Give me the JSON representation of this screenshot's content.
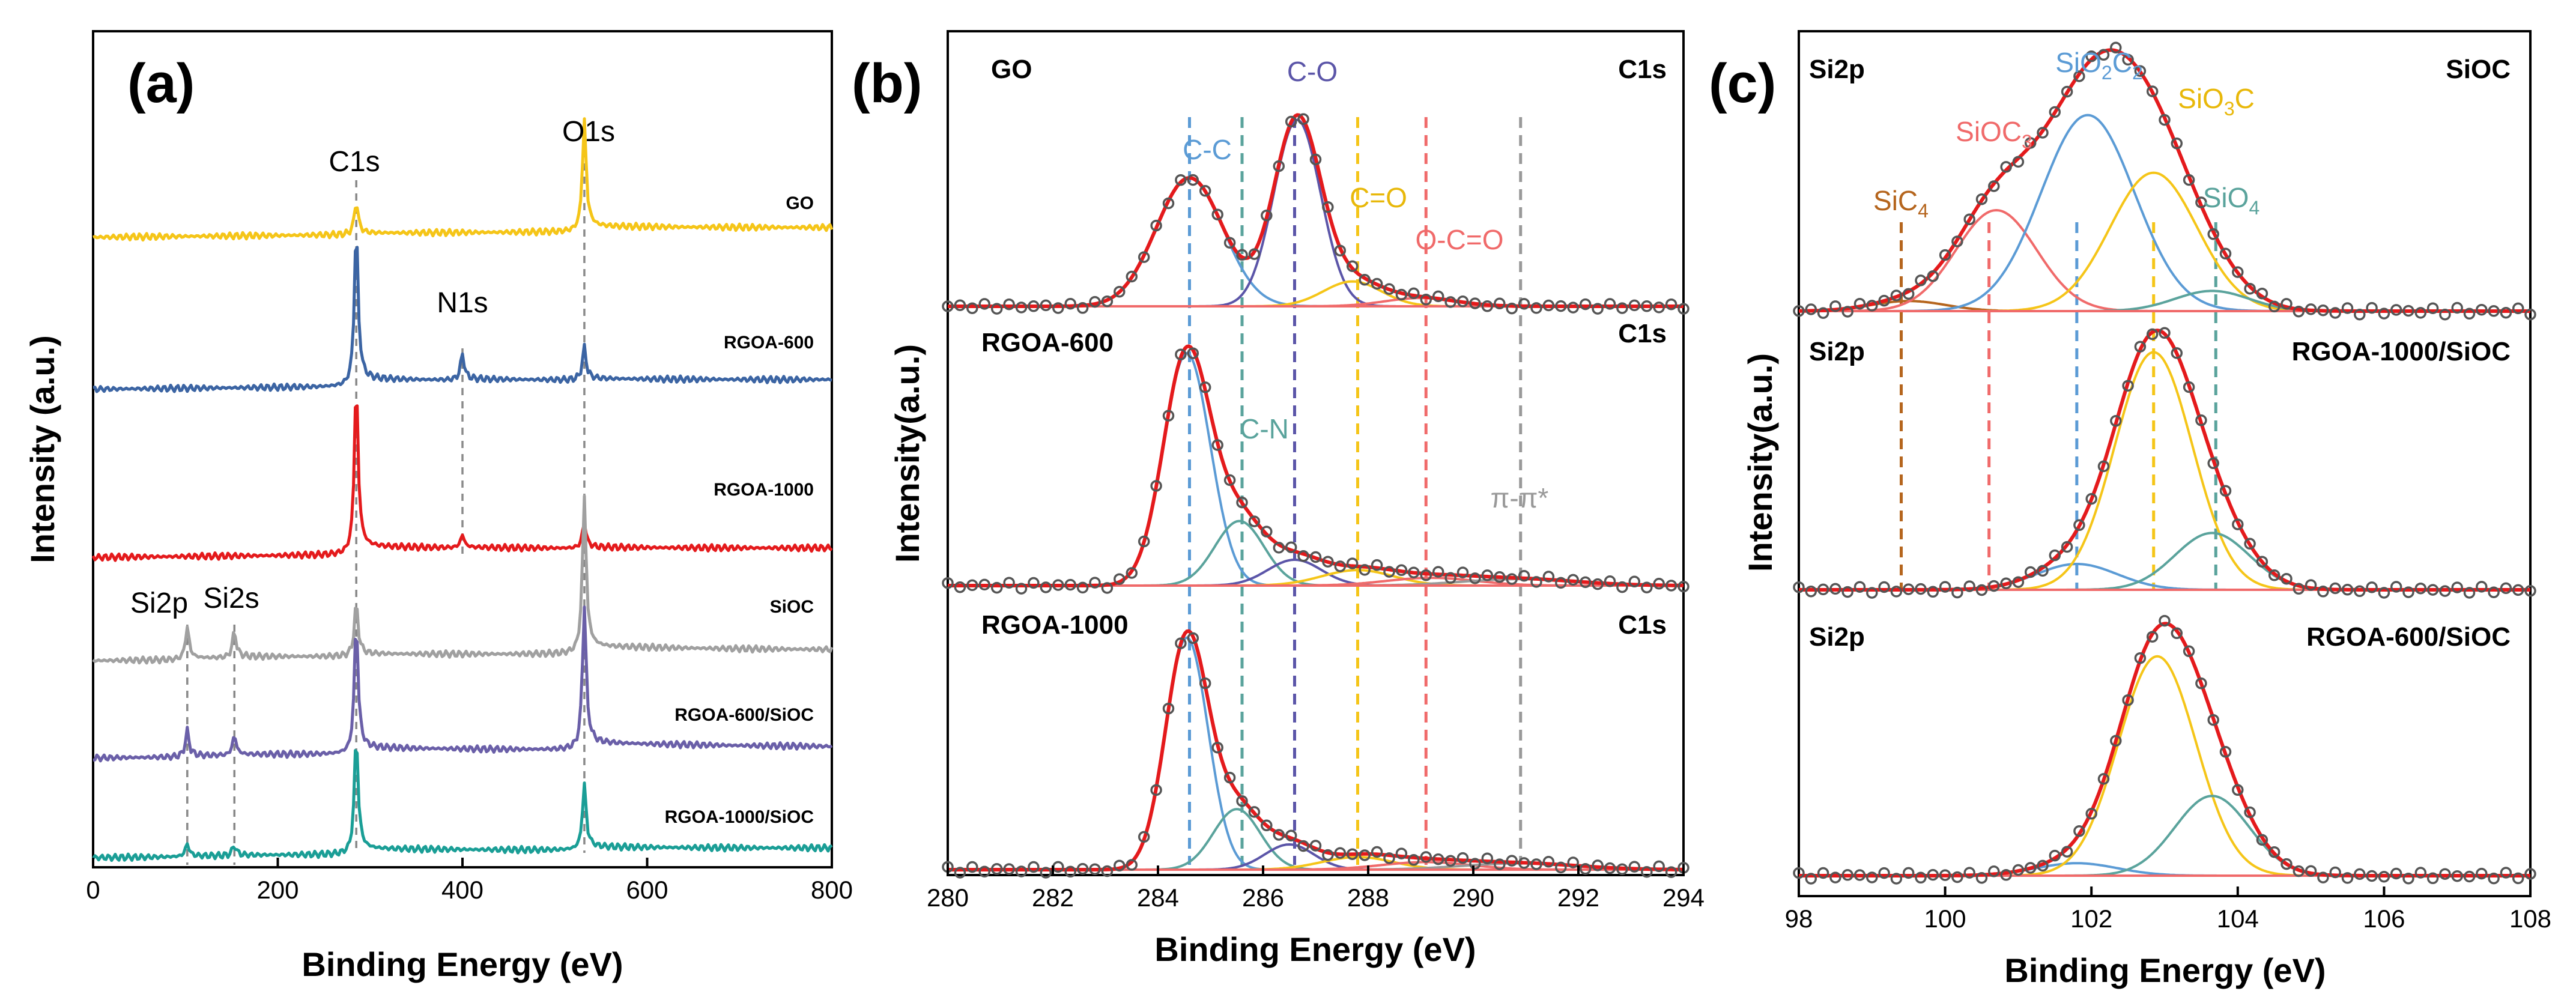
{
  "chart_data": [
    {
      "panel": "(a)",
      "type": "line",
      "xlabel": "Binding Energy (eV)",
      "ylabel": "Intensity (a.u.)",
      "xlim": [
        0,
        800
      ],
      "xticks": [
        0,
        200,
        400,
        600,
        800
      ],
      "peak_labels": [
        {
          "text": "C1s",
          "x": 285
        },
        {
          "text": "O1s",
          "x": 532
        },
        {
          "text": "N1s",
          "x": 400
        },
        {
          "text": "Si2p",
          "x": 102
        },
        {
          "text": "Si2s",
          "x": 153
        }
      ],
      "series": [
        {
          "name": "GO",
          "color": "#f5c518",
          "peaks": [
            [
              285,
              0.25
            ],
            [
              532,
              0.85
            ]
          ]
        },
        {
          "name": "RGOA-600",
          "color": "#3b64a3",
          "peaks": [
            [
              285,
              1.2
            ],
            [
              400,
              0.2
            ],
            [
              532,
              0.25
            ]
          ]
        },
        {
          "name": "RGOA-1000",
          "color": "#e41a1c",
          "peaks": [
            [
              285,
              1.3
            ],
            [
              400,
              0.1
            ],
            [
              532,
              0.2
            ]
          ]
        },
        {
          "name": "SiOC",
          "color": "#a0a0a0",
          "peaks": [
            [
              102,
              0.25
            ],
            [
              153,
              0.2
            ],
            [
              285,
              0.4
            ],
            [
              532,
              1.2
            ]
          ]
        },
        {
          "name": "RGOA-600/SiOC",
          "color": "#6a5fa8",
          "peaks": [
            [
              102,
              0.2
            ],
            [
              153,
              0.15
            ],
            [
              285,
              1.0
            ],
            [
              532,
              1.1
            ]
          ]
        },
        {
          "name": "RGOA-1000/SiOC",
          "color": "#1a9e96",
          "peaks": [
            [
              102,
              0.1
            ],
            [
              153,
              0.08
            ],
            [
              285,
              0.9
            ],
            [
              532,
              0.5
            ]
          ]
        }
      ]
    },
    {
      "panel": "(b)",
      "type": "line",
      "xlabel": "Binding Energy (eV)",
      "ylabel": "Intensity(a.u.)",
      "xlim": [
        280,
        294
      ],
      "xticks": [
        280,
        282,
        284,
        286,
        288,
        290,
        292,
        294
      ],
      "guides": [
        {
          "x": 284.6,
          "color": "#5b9bd5"
        },
        {
          "x": 285.6,
          "color": "#5aa39c"
        },
        {
          "x": 286.6,
          "color": "#5b55a8"
        },
        {
          "x": 287.8,
          "color": "#f5c518"
        },
        {
          "x": 289.1,
          "color": "#f06a6a"
        },
        {
          "x": 290.9,
          "color": "#999999"
        }
      ],
      "component_labels": [
        {
          "text": "C-C",
          "color": "#5b9bd5"
        },
        {
          "text": "C-O",
          "color": "#5b55a8"
        },
        {
          "text": "C=O",
          "color": "#e8b80a"
        },
        {
          "text": "O-C=O",
          "color": "#f06a6a"
        },
        {
          "text": "C-N",
          "color": "#5aa39c"
        },
        {
          "text": "π-π*",
          "color": "#999999"
        }
      ],
      "subplots": [
        {
          "name": "GO",
          "core_level": "C1s",
          "components": [
            {
              "label": "C-C",
              "center": 284.6,
              "fwhm": 1.5,
              "height": 0.62,
              "color": "#5b9bd5"
            },
            {
              "label": "C-O",
              "center": 286.65,
              "fwhm": 1.05,
              "height": 0.9,
              "color": "#5b55a8"
            },
            {
              "label": "C=O",
              "center": 287.7,
              "fwhm": 1.3,
              "height": 0.12,
              "color": "#f5c518"
            },
            {
              "label": "O-C=O",
              "center": 289.0,
              "fwhm": 1.6,
              "height": 0.04,
              "color": "#f06a6a"
            }
          ]
        },
        {
          "name": "RGOA-600",
          "core_level": "C1s",
          "components": [
            {
              "label": "C-C",
              "center": 284.55,
              "fwhm": 1.05,
              "height": 0.9,
              "color": "#5b9bd5"
            },
            {
              "label": "C-N",
              "center": 285.55,
              "fwhm": 1.1,
              "height": 0.25,
              "color": "#5aa39c"
            },
            {
              "label": "C-O",
              "center": 286.6,
              "fwhm": 1.2,
              "height": 0.1,
              "color": "#5b55a8"
            },
            {
              "label": "C=O",
              "center": 287.8,
              "fwhm": 1.6,
              "height": 0.06,
              "color": "#f5c518"
            },
            {
              "label": "O-C=O",
              "center": 289.2,
              "fwhm": 2.0,
              "height": 0.03,
              "color": "#f06a6a"
            },
            {
              "label": "π-π*",
              "center": 290.9,
              "fwhm": 2.6,
              "height": 0.025,
              "color": "#999999"
            }
          ]
        },
        {
          "name": "RGOA-1000",
          "core_level": "C1s",
          "components": [
            {
              "label": "C-C",
              "center": 284.55,
              "fwhm": 0.95,
              "height": 0.92,
              "color": "#5b9bd5"
            },
            {
              "label": "C-N",
              "center": 285.5,
              "fwhm": 1.05,
              "height": 0.24,
              "color": "#5aa39c"
            },
            {
              "label": "C-O",
              "center": 286.5,
              "fwhm": 1.1,
              "height": 0.1,
              "color": "#5b55a8"
            },
            {
              "label": "C=O",
              "center": 287.8,
              "fwhm": 1.6,
              "height": 0.05,
              "color": "#f5c518"
            },
            {
              "label": "O-C=O",
              "center": 289.1,
              "fwhm": 2.0,
              "height": 0.03,
              "color": "#f06a6a"
            },
            {
              "label": "π-π*",
              "center": 290.9,
              "fwhm": 2.6,
              "height": 0.025,
              "color": "#999999"
            }
          ]
        }
      ]
    },
    {
      "panel": "(c)",
      "type": "line",
      "xlabel": "Binding Energy (eV)",
      "ylabel": "Intensity(a.u.)",
      "xlim": [
        98,
        108
      ],
      "xticks": [
        98,
        100,
        102,
        104,
        106,
        108
      ],
      "guides": [
        {
          "x": 99.4,
          "color": "#b5651d"
        },
        {
          "x": 100.6,
          "color": "#f06a6a"
        },
        {
          "x": 101.8,
          "color": "#5b9bd5"
        },
        {
          "x": 102.85,
          "color": "#f5c518"
        },
        {
          "x": 103.7,
          "color": "#5aa39c"
        }
      ],
      "component_labels": [
        {
          "base": "SiC",
          "sub": "4",
          "color": "#b5651d"
        },
        {
          "base": "SiOC",
          "sub": "3",
          "color": "#f06a6a"
        },
        {
          "base": "SiO",
          "sub": "2",
          "base2": "C",
          "sub2": "2",
          "color": "#5b9bd5"
        },
        {
          "base": "SiO",
          "sub": "3",
          "base2": "C",
          "color": "#e8b80a"
        },
        {
          "base": "SiO",
          "sub": "4",
          "color": "#5aa39c"
        }
      ],
      "subplots": [
        {
          "name": "SiOC",
          "core_level": "Si2p",
          "components": [
            {
              "label": "SiC4",
              "center": 99.5,
              "fwhm": 1.2,
              "height": 0.035,
              "color": "#b5651d"
            },
            {
              "label": "SiOC3",
              "center": 100.7,
              "fwhm": 1.3,
              "height": 0.35,
              "color": "#f06a6a"
            },
            {
              "label": "SiO2C2",
              "center": 101.95,
              "fwhm": 1.5,
              "height": 0.68,
              "color": "#5b9bd5"
            },
            {
              "label": "SiO3C",
              "center": 102.85,
              "fwhm": 1.4,
              "height": 0.48,
              "color": "#f5c518"
            },
            {
              "label": "SiO4",
              "center": 103.65,
              "fwhm": 1.2,
              "height": 0.07,
              "color": "#5aa39c"
            }
          ]
        },
        {
          "name": "RGOA-1000/SiOC",
          "core_level": "Si2p",
          "components": [
            {
              "label": "SiO2C2",
              "center": 101.8,
              "fwhm": 1.3,
              "height": 0.1,
              "color": "#5b9bd5"
            },
            {
              "label": "SiO3C",
              "center": 102.85,
              "fwhm": 1.25,
              "height": 0.92,
              "color": "#f5c518"
            },
            {
              "label": "SiO4",
              "center": 103.65,
              "fwhm": 1.2,
              "height": 0.22,
              "color": "#5aa39c"
            }
          ]
        },
        {
          "name": "RGOA-600/SiOC",
          "core_level": "Si2p",
          "components": [
            {
              "label": "SiO2C2",
              "center": 101.8,
              "fwhm": 1.3,
              "height": 0.05,
              "color": "#5b9bd5"
            },
            {
              "label": "SiO3C",
              "center": 102.9,
              "fwhm": 1.25,
              "height": 0.88,
              "color": "#f5c518"
            },
            {
              "label": "SiO4",
              "center": 103.65,
              "fwhm": 1.2,
              "height": 0.32,
              "color": "#5aa39c"
            }
          ]
        }
      ]
    }
  ]
}
